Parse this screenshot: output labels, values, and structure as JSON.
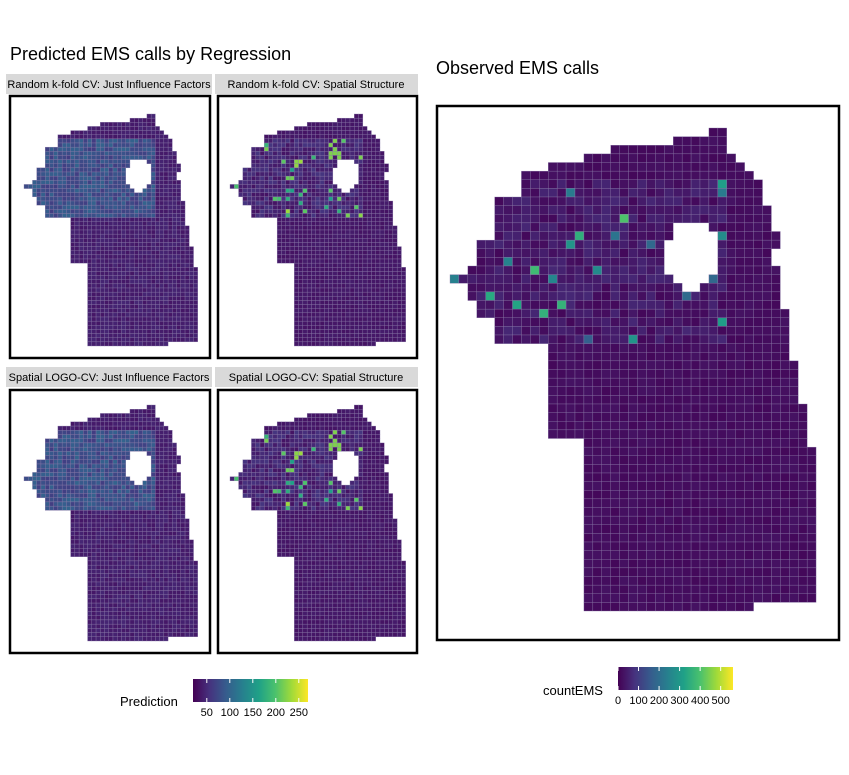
{
  "left": {
    "title": "Predicted EMS calls by Regression",
    "facets": [
      {
        "label": "Random k-fold CV: Just Influence Factors",
        "variant": "smooth"
      },
      {
        "label": "Random k-fold CV: Spatial Structure",
        "variant": "spatial"
      },
      {
        "label": "Spatial LOGO-CV: Just Influence Factors",
        "variant": "smooth"
      },
      {
        "label": "Spatial LOGO-CV: Spatial Structure",
        "variant": "spatial"
      }
    ],
    "legend": {
      "title": "Prediction",
      "tick_labels": [
        "50",
        "100",
        "150",
        "200",
        "250"
      ],
      "tick_values": [
        50,
        100,
        150,
        200,
        250
      ],
      "range": [
        20,
        270
      ]
    }
  },
  "right": {
    "title": "Observed EMS calls",
    "legend": {
      "title": "countEMS",
      "tick_labels": [
        "0",
        "100",
        "200",
        "300",
        "400",
        "500"
      ],
      "tick_values": [
        0,
        100,
        200,
        300,
        400,
        500
      ],
      "range": [
        0,
        560
      ]
    }
  },
  "colors": {
    "viridis": [
      "#440154",
      "#46327e",
      "#365c8d",
      "#277f8e",
      "#1fa187",
      "#4ac16d",
      "#a0da39",
      "#fde725"
    ],
    "background": "#482475",
    "cell_border": "#8a7aa8",
    "strip_fill": "#d9d9d9",
    "panel_border": "#000000"
  }
}
